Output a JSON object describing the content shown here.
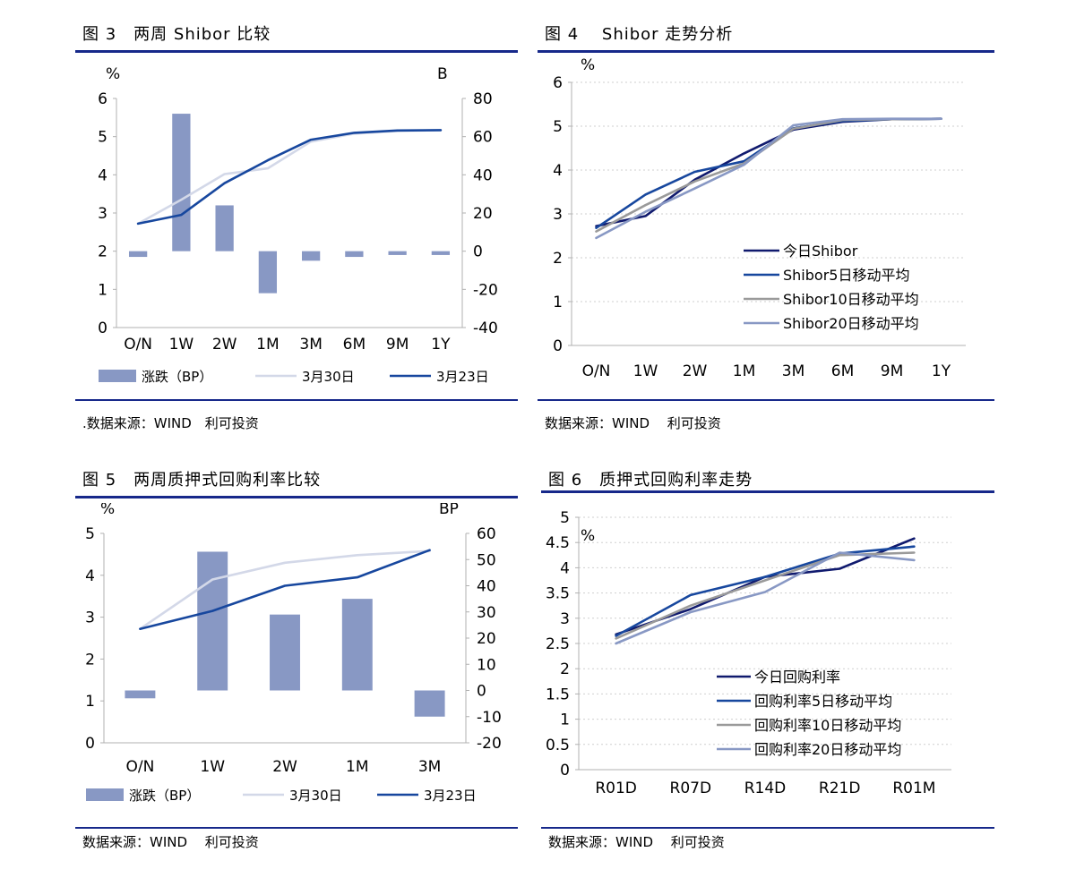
{
  "panels": [
    {
      "id": "fig3",
      "title": "图 3　两周 Shibor 比较",
      "source": ".数据来源：WIND　利可投资",
      "chart_data": {
        "type": "bar+line",
        "categories": [
          "O/N",
          "1W",
          "2W",
          "1M",
          "3M",
          "6M",
          "9M",
          "1Y"
        ],
        "y_left": {
          "unit": "%",
          "range": [
            0,
            6
          ],
          "ticks": [
            0,
            1,
            2,
            3,
            4,
            5,
            6
          ]
        },
        "y_right": {
          "unit": "B",
          "range": [
            -40,
            80
          ],
          "ticks": [
            -40,
            -20,
            0,
            20,
            40,
            60,
            80
          ]
        },
        "bars": {
          "name": "涨跌（BP）",
          "axis": "right",
          "values": [
            -3,
            72,
            24,
            -22,
            -5,
            -3,
            -2,
            -2
          ],
          "color": "#8898c4"
        },
        "lines": [
          {
            "name": "3月30日",
            "axis": "left",
            "values": [
              2.72,
              3.35,
              4.02,
              4.17,
              4.87,
              5.08,
              5.15,
              5.17
            ],
            "color": "#d3d8e8"
          },
          {
            "name": "3月23日",
            "axis": "left",
            "values": [
              2.72,
              2.95,
              3.78,
              4.38,
              4.92,
              5.1,
              5.16,
              5.17
            ],
            "color": "#17479e"
          }
        ]
      }
    },
    {
      "id": "fig4",
      "title": "图 4　 Shibor 走势分析",
      "source": "数据来源：WIND　 利可投资",
      "chart_data": {
        "type": "line",
        "categories": [
          "O/N",
          "1W",
          "2W",
          "1M",
          "3M",
          "6M",
          "9M",
          "1Y"
        ],
        "y": {
          "unit": "%",
          "range": [
            0,
            6
          ],
          "ticks": [
            0,
            1,
            2,
            3,
            4,
            5,
            6
          ]
        },
        "series": [
          {
            "name": "今日Shibor",
            "values": [
              2.72,
              2.95,
              3.78,
              4.38,
              4.92,
              5.1,
              5.16,
              5.17
            ],
            "color": "#101a6e"
          },
          {
            "name": "Shibor5日移动平均",
            "values": [
              2.68,
              3.44,
              3.96,
              4.2,
              4.95,
              5.12,
              5.16,
              5.17
            ],
            "color": "#17479e"
          },
          {
            "name": "Shibor10日移动平均",
            "values": [
              2.6,
              3.2,
              3.74,
              4.15,
              4.94,
              5.14,
              5.16,
              5.17
            ],
            "color": "#9a9a9a"
          },
          {
            "name": "Shibor20日移动平均",
            "values": [
              2.45,
              3.05,
              3.58,
              4.12,
              5.02,
              5.16,
              5.17,
              5.17
            ],
            "color": "#8898c4"
          }
        ]
      }
    },
    {
      "id": "fig5",
      "title": "图 5　两周质押式回购利率比较",
      "source": "数据来源：WIND　 利可投资",
      "chart_data": {
        "type": "bar+line",
        "categories": [
          "O/N",
          "1W",
          "2W",
          "1M",
          "3M"
        ],
        "y_left": {
          "unit": "%",
          "range": [
            0,
            5
          ],
          "ticks": [
            0,
            1,
            2,
            3,
            4,
            5
          ]
        },
        "y_right": {
          "unit": "BP",
          "range": [
            -20,
            60
          ],
          "ticks": [
            -20,
            -10,
            0,
            10,
            20,
            30,
            40,
            50,
            60
          ]
        },
        "bars": {
          "name": "涨跌（BP）",
          "axis": "right",
          "values": [
            -3,
            53,
            29,
            35,
            -10
          ],
          "color": "#8898c4"
        },
        "lines": [
          {
            "name": "3月30日",
            "axis": "left",
            "values": [
              2.72,
              3.9,
              4.3,
              4.48,
              4.58
            ],
            "color": "#d3d8e8"
          },
          {
            "name": "3月23日",
            "axis": "left",
            "values": [
              2.72,
              3.15,
              3.75,
              3.95,
              4.6
            ],
            "color": "#17479e"
          }
        ]
      }
    },
    {
      "id": "fig6",
      "title": "图 6　质押式回购利率走势",
      "source": "数据来源：WIND　 利可投资",
      "chart_data": {
        "type": "line",
        "categories": [
          "R01D",
          "R07D",
          "R14D",
          "R21D",
          "R01M"
        ],
        "y": {
          "unit": "%",
          "range": [
            0,
            5
          ],
          "ticks": [
            0,
            0.5,
            1,
            1.5,
            2,
            2.5,
            3,
            3.5,
            4,
            4.5,
            5
          ]
        },
        "series": [
          {
            "name": "今日回购利率",
            "values": [
              2.68,
              3.18,
              3.82,
              3.98,
              4.58
            ],
            "color": "#101a6e"
          },
          {
            "name": "回购利率5日移动平均",
            "values": [
              2.65,
              3.46,
              3.82,
              4.28,
              4.42
            ],
            "color": "#17479e"
          },
          {
            "name": "回购利率10日移动平均",
            "values": [
              2.6,
              3.25,
              3.75,
              4.25,
              4.3
            ],
            "color": "#9a9a9a"
          },
          {
            "name": "回购利率20日移动平均",
            "values": [
              2.5,
              3.12,
              3.52,
              4.3,
              4.15
            ],
            "color": "#8898c4"
          }
        ]
      }
    }
  ]
}
